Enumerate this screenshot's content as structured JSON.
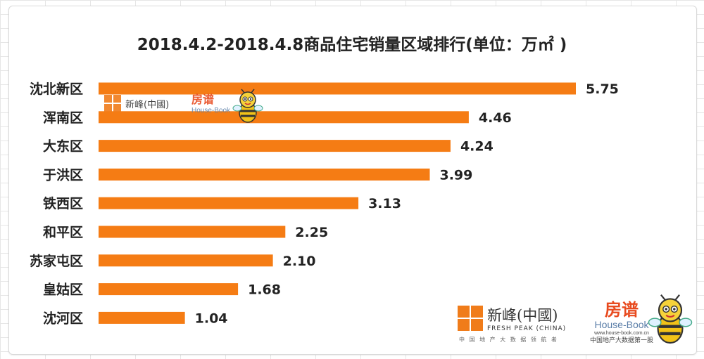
{
  "chart_data": {
    "type": "bar",
    "orientation": "horizontal",
    "title": "2018.4.2-2018.4.8商品住宅销量区域排行(单位：万㎡ )",
    "categories": [
      "沈北新区",
      "浑南区",
      "大东区",
      "于洪区",
      "铁西区",
      "和平区",
      "苏家屯区",
      "皇姑区",
      "沈河区"
    ],
    "values": [
      5.75,
      4.46,
      4.24,
      3.99,
      3.13,
      2.25,
      2.1,
      1.68,
      1.04
    ],
    "value_labels": [
      "5.75",
      "4.46",
      "4.24",
      "3.99",
      "3.13",
      "2.25",
      "2.10",
      "1.68",
      "1.04"
    ],
    "xlim": [
      0,
      5.75
    ],
    "bar_color": "#f57c14",
    "grid": false,
    "legend": "none",
    "data_labels": "outside-end"
  },
  "watermarks": {
    "freshpeak_name": "新峰(中國)",
    "freshpeak_en": "FRESH PEAK (CHINA)",
    "freshpeak_sub": "中 国 地 产 大 数 据 领 航 者",
    "housebook_cn": "房谱",
    "housebook_en": "House-Book",
    "housebook_url": "www.house-book.com.cn",
    "housebook_sub": "中国地产大数据第一股"
  }
}
